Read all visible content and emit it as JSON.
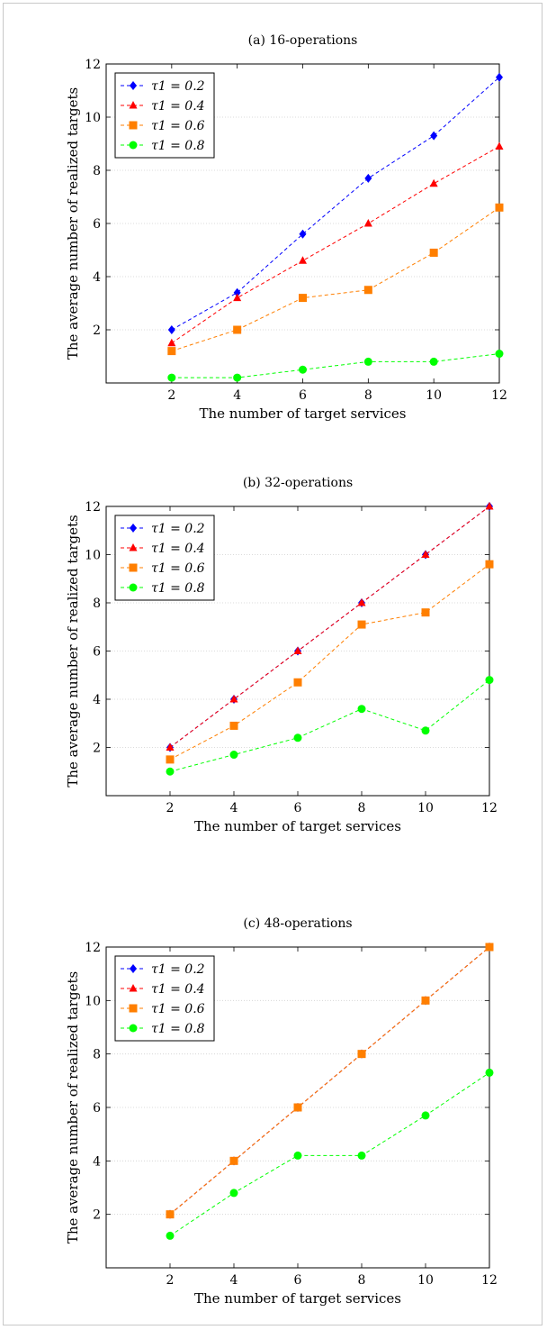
{
  "figure": {
    "shared": {
      "xlabel": "The number of target services",
      "ylabel": "The average number of realized targets"
    }
  },
  "chart_data": [
    {
      "type": "line",
      "title": "(a) 16-operations",
      "xlabel": "The number of target services",
      "ylabel": "The average number of realized targets",
      "x": [
        2,
        4,
        6,
        8,
        10,
        12
      ],
      "xlim": [
        0,
        12
      ],
      "ylim": [
        0,
        12
      ],
      "xticks": [
        2,
        4,
        6,
        8,
        10,
        12
      ],
      "yticks": [
        2,
        4,
        6,
        8,
        10,
        12
      ],
      "grid": "horizontal dotted",
      "legend_position": "top-left",
      "series": [
        {
          "name": "τ1 = 0.2",
          "color": "#0000ff",
          "marker": "diamond",
          "values": [
            2.0,
            3.4,
            5.6,
            7.7,
            9.3,
            11.5
          ]
        },
        {
          "name": "τ1 = 0.4",
          "color": "#ff0000",
          "marker": "triangle",
          "values": [
            1.5,
            3.2,
            4.6,
            6.0,
            7.5,
            8.9
          ]
        },
        {
          "name": "τ1 = 0.6",
          "color": "#ff7f00",
          "marker": "square",
          "values": [
            1.2,
            2.0,
            3.2,
            3.5,
            4.9,
            6.6
          ]
        },
        {
          "name": "τ1 = 0.8",
          "color": "#00ff00",
          "marker": "circle",
          "values": [
            0.2,
            0.2,
            0.5,
            0.8,
            0.8,
            1.1
          ]
        }
      ]
    },
    {
      "type": "line",
      "title": "(b) 32-operations",
      "xlabel": "The number of target services",
      "ylabel": "The average number of realized targets",
      "x": [
        2,
        4,
        6,
        8,
        10,
        12
      ],
      "xlim": [
        0,
        12
      ],
      "ylim": [
        0,
        12
      ],
      "xticks": [
        2,
        4,
        6,
        8,
        10,
        12
      ],
      "yticks": [
        2,
        4,
        6,
        8,
        10,
        12
      ],
      "grid": "horizontal dotted",
      "legend_position": "top-left",
      "series": [
        {
          "name": "τ1 = 0.2",
          "color": "#0000ff",
          "marker": "diamond",
          "values": [
            2,
            4,
            6,
            8,
            10,
            12
          ]
        },
        {
          "name": "τ1 = 0.4",
          "color": "#ff0000",
          "marker": "triangle",
          "values": [
            2,
            4,
            6,
            8,
            10,
            12
          ]
        },
        {
          "name": "τ1 = 0.6",
          "color": "#ff7f00",
          "marker": "square",
          "values": [
            1.5,
            2.9,
            4.7,
            7.1,
            7.6,
            9.6
          ]
        },
        {
          "name": "τ1 = 0.8",
          "color": "#00ff00",
          "marker": "circle",
          "values": [
            1.0,
            1.7,
            2.4,
            3.6,
            2.7,
            4.8
          ]
        }
      ]
    },
    {
      "type": "line",
      "title": "(c) 48-operations",
      "xlabel": "The number of target services",
      "ylabel": "The average number of realized targets",
      "x": [
        2,
        4,
        6,
        8,
        10,
        12
      ],
      "xlim": [
        0,
        12
      ],
      "ylim": [
        0,
        12
      ],
      "xticks": [
        2,
        4,
        6,
        8,
        10,
        12
      ],
      "yticks": [
        2,
        4,
        6,
        8,
        10,
        12
      ],
      "grid": "horizontal dotted",
      "legend_position": "top-left",
      "series": [
        {
          "name": "τ1 = 0.2",
          "color": "#0000ff",
          "marker": "diamond",
          "values": [
            2,
            4,
            6,
            8,
            10,
            12
          ]
        },
        {
          "name": "τ1 = 0.4",
          "color": "#ff0000",
          "marker": "triangle",
          "values": [
            2,
            4,
            6,
            8,
            10,
            12
          ]
        },
        {
          "name": "τ1 = 0.6",
          "color": "#ff7f00",
          "marker": "square",
          "values": [
            2,
            4,
            6,
            8,
            10,
            12
          ]
        },
        {
          "name": "τ1 = 0.8",
          "color": "#00ff00",
          "marker": "circle",
          "values": [
            1.2,
            2.8,
            4.2,
            4.2,
            5.7,
            7.3
          ]
        }
      ]
    }
  ]
}
